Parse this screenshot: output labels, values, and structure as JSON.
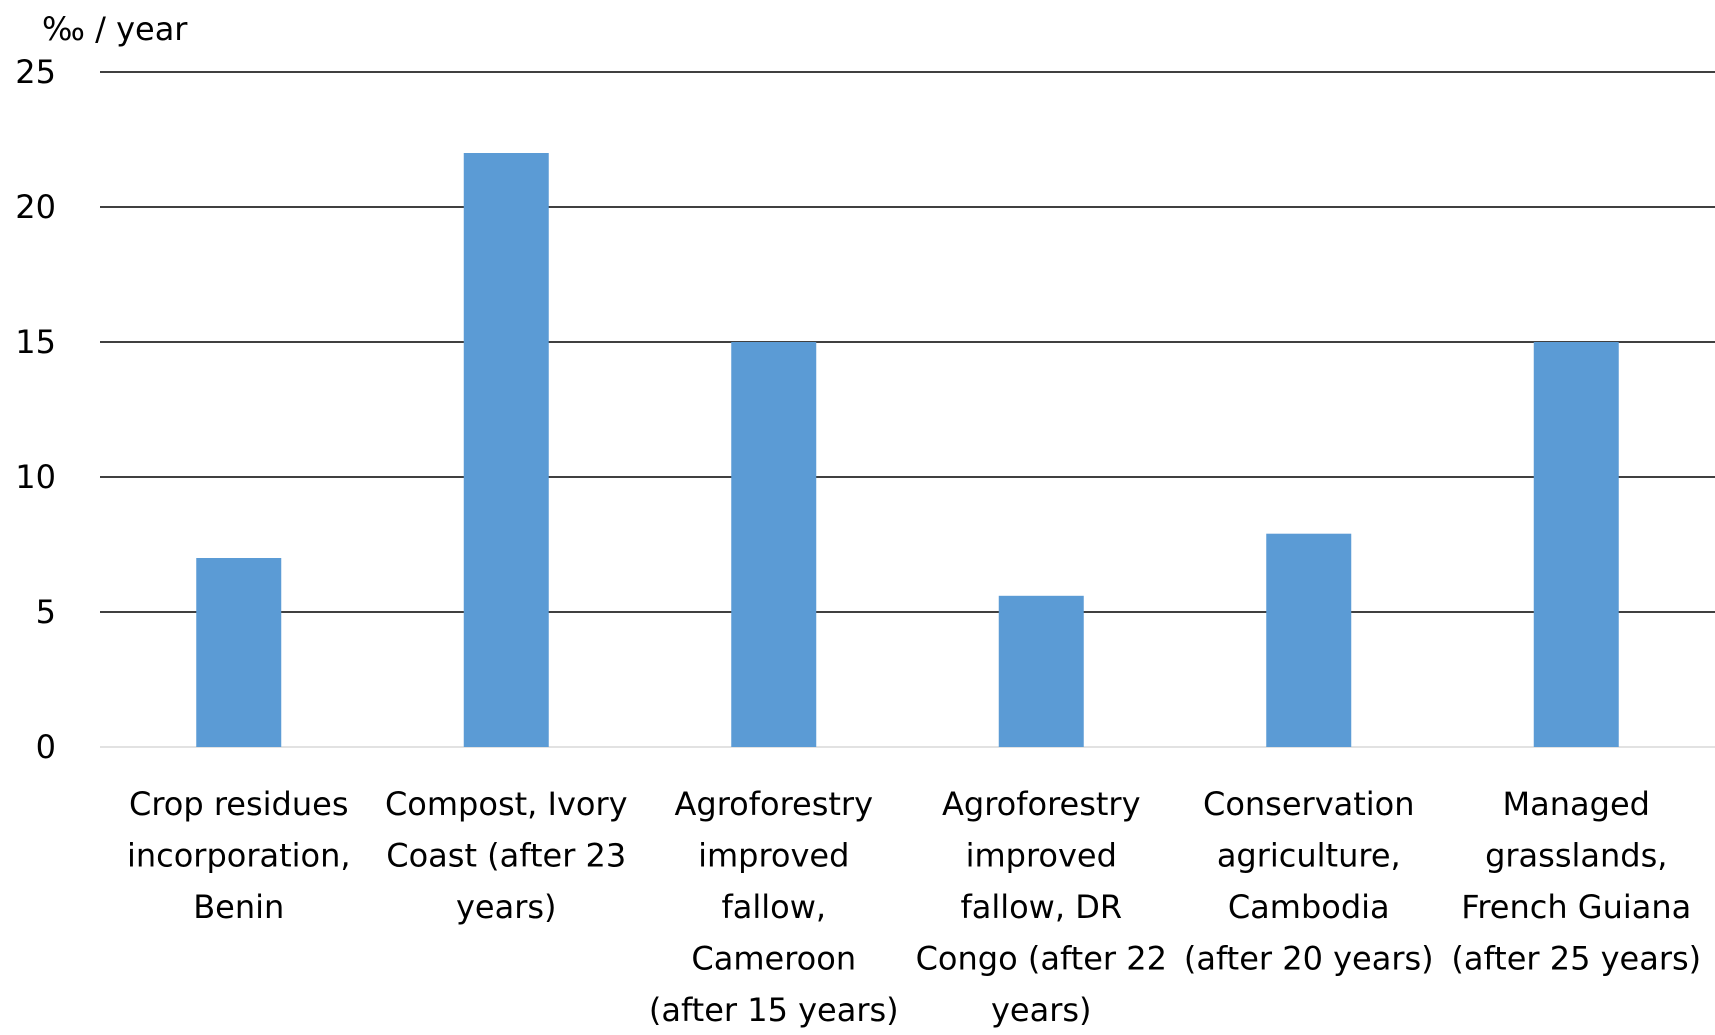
{
  "chart_data": {
    "type": "bar",
    "title": "",
    "xlabel": "",
    "ylabel": "‰ / year",
    "ylim": [
      0,
      25
    ],
    "yticks": [
      0,
      5,
      10,
      15,
      20,
      25
    ],
    "grid": true,
    "legend": "none",
    "bar_color": "#5b9bd5",
    "categories": [
      "Crop residues incorporation, Benin",
      "Compost, Ivory Coast (after 23 years)",
      "Agroforestry improved fallow, Cameroon (after 15 years)",
      "Agroforestry improved fallow, DR Congo (after 22 years)",
      "Conservation agriculture, Cambodia (after 20 years)",
      "Managed grasslands, French Guiana (after 25 years)"
    ],
    "category_lines": [
      [
        "Crop residues",
        "incorporation,",
        "Benin"
      ],
      [
        "Compost, Ivory",
        "Coast (after 23",
        "years)"
      ],
      [
        "Agroforestry",
        "improved",
        "fallow,",
        "Cameroon",
        "(after 15 years)"
      ],
      [
        "Agroforestry",
        "improved",
        "fallow, DR",
        "Congo (after 22",
        "years)"
      ],
      [
        "Conservation",
        "agriculture,",
        "Cambodia",
        "(after 20 years)"
      ],
      [
        "Managed",
        "grasslands,",
        "French Guiana",
        "(after 25 years)"
      ]
    ],
    "values": [
      7,
      22,
      15,
      5.6,
      7.9,
      15
    ]
  }
}
